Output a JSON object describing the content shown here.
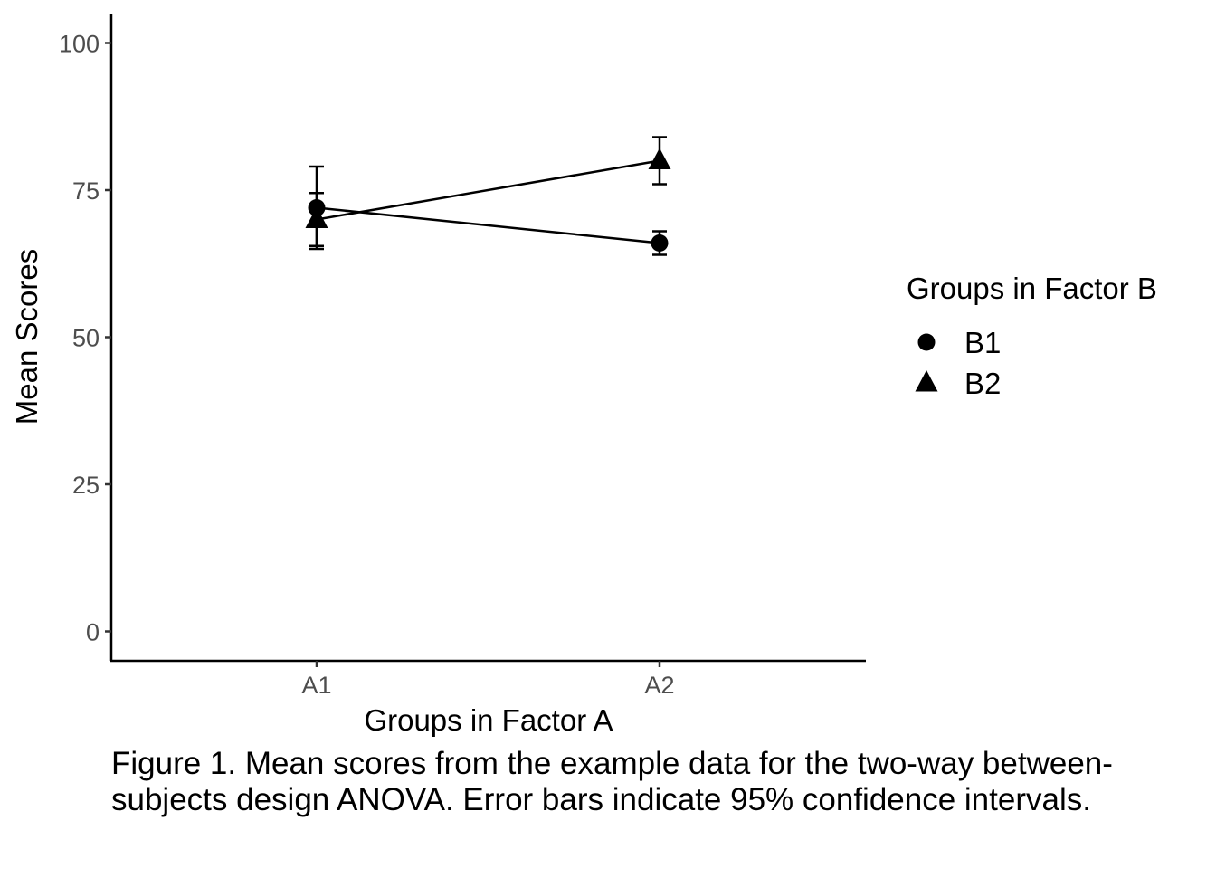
{
  "chart_data": {
    "type": "line",
    "xlabel": "Groups in Factor A",
    "ylabel": "Mean Scores",
    "categories": [
      "A1",
      "A2"
    ],
    "ylim": [
      -5,
      105
    ],
    "yticks": [
      0,
      25,
      50,
      75,
      100
    ],
    "grid": false,
    "legend": {
      "title": "Groups in Factor B",
      "position": "right"
    },
    "series": [
      {
        "name": "B1",
        "marker": "circle",
        "values": [
          72,
          66
        ],
        "ci_low": [
          65.5,
          64
        ],
        "ci_high": [
          79,
          68
        ]
      },
      {
        "name": "B2",
        "marker": "triangle",
        "values": [
          70,
          80
        ],
        "ci_low": [
          65,
          76
        ],
        "ci_high": [
          74.5,
          84
        ]
      }
    ],
    "caption": "Figure 1. Mean scores from the example data for the two-way between-subjects design ANOVA. Error bars indicate 95% confidence intervals."
  }
}
